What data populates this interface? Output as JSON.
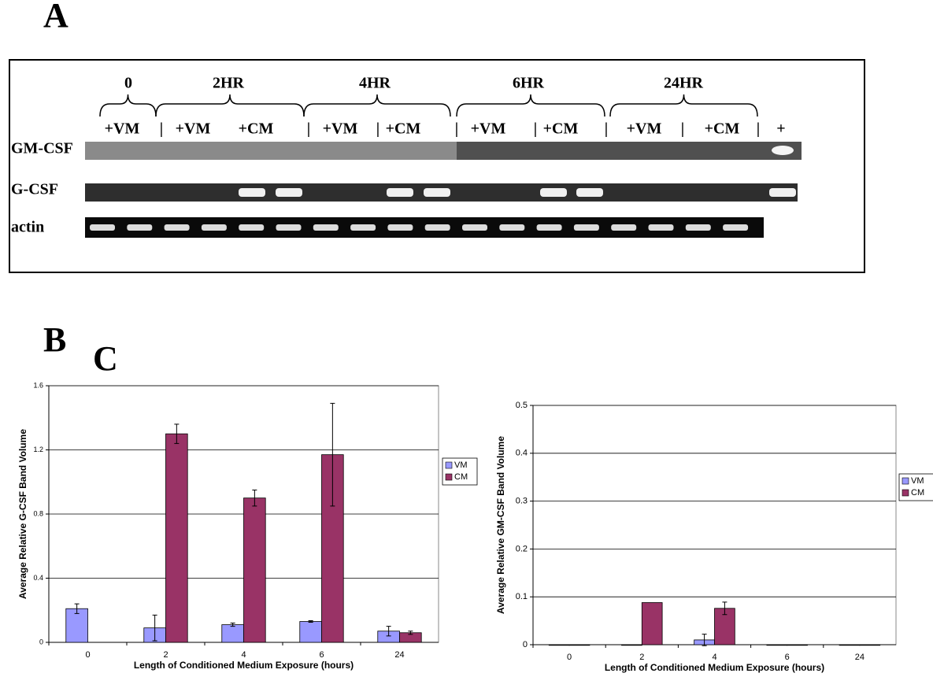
{
  "figure_labels": {
    "a": "A",
    "b": "B",
    "c": "C"
  },
  "gel": {
    "time_headers": [
      "0",
      "2HR",
      "4HR",
      "6HR",
      "24HR"
    ],
    "lane_labels": [
      "+VM",
      "+VM",
      "+CM",
      "+VM",
      "+CM",
      "+VM",
      "+CM",
      "+VM",
      "+CM"
    ],
    "separator": "|",
    "positive_label": "+",
    "row_labels": [
      "GM-CSF",
      "G-CSF",
      "actin"
    ]
  },
  "chart_data": [
    {
      "type": "bar",
      "y_label": "Average Relative G-CSF Band Volume",
      "x_label": "Length of Conditioned Medium Exposure (hours)",
      "categories": [
        "0",
        "2",
        "4",
        "6",
        "24"
      ],
      "series": [
        {
          "name": "VM",
          "color": "#9999ff",
          "values": [
            0.21,
            0.09,
            0.11,
            0.13,
            0.07
          ],
          "errors": [
            0.03,
            0.08,
            0.01,
            0.005,
            0.03
          ]
        },
        {
          "name": "CM",
          "color": "#993366",
          "values": [
            null,
            1.3,
            0.9,
            1.17,
            0.06
          ],
          "errors": [
            null,
            0.06,
            0.05,
            0.32,
            0.01
          ]
        }
      ],
      "ylim": [
        0,
        1.6
      ],
      "yticks": [
        0,
        0.4,
        0.8,
        1.2,
        1.6
      ],
      "grid": true,
      "legend": "right"
    },
    {
      "type": "bar",
      "y_label": "Average Relative GM-CSF Band Volume",
      "x_label": "Length of Conditioned Medium Exposure (hours)",
      "categories": [
        "0",
        "2",
        "4",
        "6",
        "24"
      ],
      "series": [
        {
          "name": "VM",
          "color": "#9999ff",
          "values": [
            0,
            0,
            0.01,
            0,
            0
          ],
          "errors": [
            null,
            null,
            0.012,
            null,
            null
          ]
        },
        {
          "name": "CM",
          "color": "#993366",
          "values": [
            0,
            0.088,
            0.076,
            0,
            0
          ],
          "errors": [
            null,
            null,
            0.013,
            null,
            null
          ]
        }
      ],
      "ylim": [
        0,
        0.5
      ],
      "yticks": [
        0,
        0.1,
        0.2,
        0.3,
        0.4,
        0.5
      ],
      "grid": true,
      "legend": "right"
    }
  ]
}
